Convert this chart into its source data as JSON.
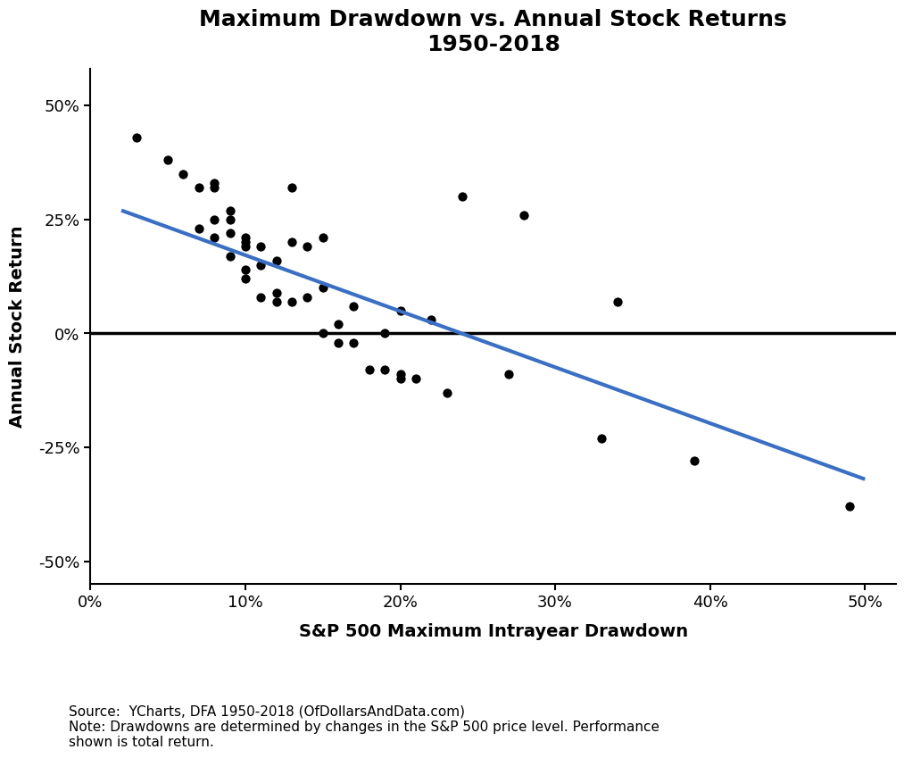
{
  "title": "Maximum Drawdown vs. Annual Stock Returns\n1950-2018",
  "xlabel": "S&P 500 Maximum Intrayear Drawdown",
  "ylabel": "Annual Stock Return",
  "source_text": "Source:  YCharts, DFA 1950-2018 (OfDollarsAndData.com)\nNote: Drawdowns are determined by changes in the S&P 500 price level. Performance\nshown is total return.",
  "scatter_color": "#000000",
  "line_color": "#3a6fc4",
  "background_color": "#ffffff",
  "xlim": [
    0.0,
    0.52
  ],
  "ylim": [
    -0.55,
    0.58
  ],
  "xticks": [
    0.0,
    0.1,
    0.2,
    0.3,
    0.4,
    0.5
  ],
  "yticks": [
    -0.5,
    -0.25,
    0.0,
    0.25,
    0.5
  ],
  "drawdown": [
    0.03,
    0.05,
    0.06,
    0.07,
    0.07,
    0.08,
    0.08,
    0.08,
    0.08,
    0.09,
    0.09,
    0.09,
    0.09,
    0.1,
    0.1,
    0.1,
    0.1,
    0.1,
    0.11,
    0.11,
    0.11,
    0.12,
    0.12,
    0.12,
    0.13,
    0.13,
    0.13,
    0.14,
    0.14,
    0.15,
    0.15,
    0.15,
    0.16,
    0.16,
    0.17,
    0.17,
    0.18,
    0.19,
    0.19,
    0.2,
    0.2,
    0.2,
    0.21,
    0.22,
    0.23,
    0.24,
    0.27,
    0.28,
    0.33,
    0.34,
    0.39,
    0.49
  ],
  "annual_return": [
    0.43,
    0.38,
    0.35,
    0.23,
    0.32,
    0.21,
    0.25,
    0.33,
    0.32,
    0.22,
    0.25,
    0.27,
    0.17,
    0.21,
    0.2,
    0.19,
    0.14,
    0.12,
    0.19,
    0.15,
    0.08,
    0.16,
    0.09,
    0.07,
    0.32,
    0.2,
    0.07,
    0.19,
    0.08,
    0.21,
    0.1,
    0.0,
    0.02,
    -0.02,
    0.06,
    -0.02,
    -0.08,
    -0.08,
    0.0,
    0.05,
    -0.09,
    -0.1,
    -0.1,
    0.03,
    -0.13,
    0.3,
    -0.09,
    0.26,
    -0.23,
    0.07,
    -0.28,
    -0.38
  ],
  "trend_x": [
    0.02,
    0.5
  ],
  "trend_y": [
    0.27,
    -0.32
  ],
  "hline_y": 0.0,
  "marker_size": 55,
  "title_fontsize": 18,
  "label_fontsize": 14,
  "tick_fontsize": 13,
  "source_fontsize": 11
}
